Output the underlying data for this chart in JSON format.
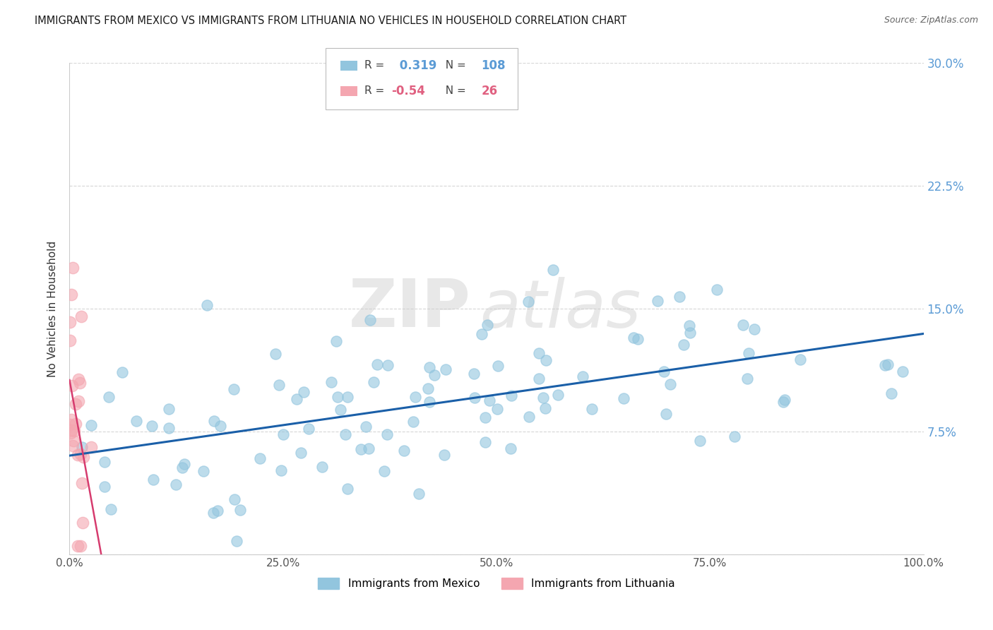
{
  "title": "IMMIGRANTS FROM MEXICO VS IMMIGRANTS FROM LITHUANIA NO VEHICLES IN HOUSEHOLD CORRELATION CHART",
  "source": "Source: ZipAtlas.com",
  "ylabel": "No Vehicles in Household",
  "xlim": [
    0,
    1.0
  ],
  "ylim": [
    0,
    0.3
  ],
  "x_ticks": [
    0.0,
    0.25,
    0.5,
    0.75,
    1.0
  ],
  "x_tick_labels": [
    "0.0%",
    "25.0%",
    "50.0%",
    "75.0%",
    "100.0%"
  ],
  "y_ticks": [
    0.0,
    0.075,
    0.15,
    0.225,
    0.3
  ],
  "y_tick_labels_right": [
    "",
    "7.5%",
    "15.0%",
    "22.5%",
    "30.0%"
  ],
  "mexico_color": "#92c5de",
  "lithuania_color": "#f4a6b0",
  "mexico_R": 0.319,
  "mexico_N": 108,
  "lithuania_R": -0.54,
  "lithuania_N": 26,
  "mexico_line_color": "#1a5fa8",
  "lithuania_line_color": "#d63b6e",
  "watermark_zip": "ZIP",
  "watermark_atlas": "atlas",
  "legend_label_mexico": "Immigrants from Mexico",
  "legend_label_lithuania": "Immigrants from Lithuania",
  "background_color": "#ffffff",
  "grid_color": "#cccccc",
  "right_label_color": "#5b9bd5",
  "title_color": "#1a1a1a",
  "source_color": "#666666",
  "tick_color": "#555555"
}
